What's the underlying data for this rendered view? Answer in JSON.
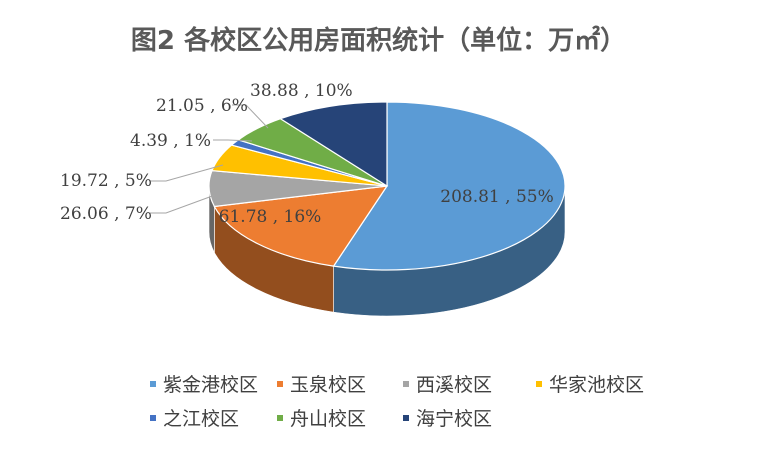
{
  "title": "图2 各校区公用房面积统计（单位：万㎡）",
  "chart_data": {
    "type": "pie",
    "categories": [
      "紫金港校区",
      "玉泉校区",
      "西溪校区",
      "华家池校区",
      "之江校区",
      "舟山校区",
      "海宁校区"
    ],
    "values": [
      208.81,
      61.78,
      26.06,
      19.72,
      4.39,
      21.05,
      38.88
    ],
    "percents": [
      55,
      16,
      7,
      5,
      1,
      6,
      10
    ],
    "data_labels": [
      "208.81 , 55%",
      "61.78 , 16%",
      "26.06 , 7%",
      "19.72 , 5%",
      "4.39 , 1%",
      "21.05 , 6%",
      "38.88 , 10%"
    ],
    "colors": [
      "#5B9BD5",
      "#ED7D31",
      "#A5A5A5",
      "#FFC000",
      "#4472C4",
      "#70AD47",
      "#264478"
    ],
    "legend_position": "bottom",
    "style": "3d"
  }
}
